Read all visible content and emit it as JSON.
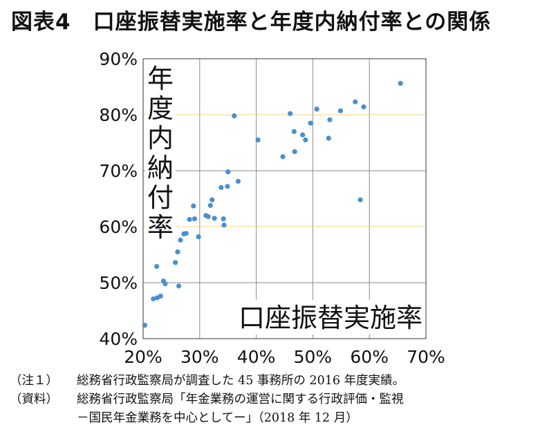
{
  "title": "図表4　口座振替実施率と年度内納付率との関係",
  "chart_data": {
    "type": "scatter",
    "ylabel": "年度内納付率",
    "xlabel": "口座振替実施率",
    "xlim": [
      20,
      70
    ],
    "ylim": [
      40,
      90
    ],
    "x_ticks": [
      "20%",
      "30%",
      "40%",
      "50%",
      "60%",
      "70%"
    ],
    "y_ticks": [
      "40%",
      "50%",
      "60%",
      "70%",
      "80%",
      "90%"
    ],
    "grid": true,
    "highlight_gridlines": [
      60,
      80
    ],
    "highlight_color": "#f5d28a",
    "point_color": "#4a8fd0",
    "points": [
      [
        20.3,
        42.4
      ],
      [
        21.8,
        47.1
      ],
      [
        22.5,
        47.3
      ],
      [
        23.1,
        47.6
      ],
      [
        22.4,
        52.9
      ],
      [
        23.6,
        50.3
      ],
      [
        23.9,
        49.8
      ],
      [
        25.7,
        53.6
      ],
      [
        26.1,
        55.5
      ],
      [
        26.3,
        49.4
      ],
      [
        26.6,
        57.6
      ],
      [
        27.2,
        58.7
      ],
      [
        27.6,
        58.8
      ],
      [
        28.2,
        61.3
      ],
      [
        28.9,
        63.7
      ],
      [
        29.1,
        61.4
      ],
      [
        29.8,
        58.2
      ],
      [
        31.1,
        62.0
      ],
      [
        31.5,
        61.8
      ],
      [
        31.9,
        63.8
      ],
      [
        32.2,
        64.8
      ],
      [
        32.6,
        61.5
      ],
      [
        33.8,
        67.0
      ],
      [
        34.2,
        61.4
      ],
      [
        34.3,
        60.3
      ],
      [
        34.9,
        67.2
      ],
      [
        35.0,
        69.8
      ],
      [
        36.1,
        79.8
      ],
      [
        36.8,
        68.1
      ],
      [
        40.3,
        75.5
      ],
      [
        44.7,
        72.5
      ],
      [
        46.0,
        80.2
      ],
      [
        46.7,
        77.0
      ],
      [
        46.8,
        73.4
      ],
      [
        48.2,
        76.4
      ],
      [
        48.7,
        75.5
      ],
      [
        49.6,
        78.5
      ],
      [
        50.7,
        81.0
      ],
      [
        52.8,
        75.8
      ],
      [
        53.0,
        79.1
      ],
      [
        54.9,
        80.7
      ],
      [
        57.5,
        82.3
      ],
      [
        58.4,
        64.8
      ],
      [
        59.0,
        81.4
      ],
      [
        65.5,
        85.6
      ]
    ]
  },
  "notes": [
    {
      "label": "（注１）",
      "text": "総務省行政監察局が調査した 45 事務所の 2016 年度実績。"
    },
    {
      "label": "（資料）",
      "text": "総務省行政監察局「年金業務の運営に関する行政評価・監視"
    },
    {
      "label": "",
      "text": "－国民年金業務を中心としてー」（2018 年 12 月）"
    }
  ]
}
